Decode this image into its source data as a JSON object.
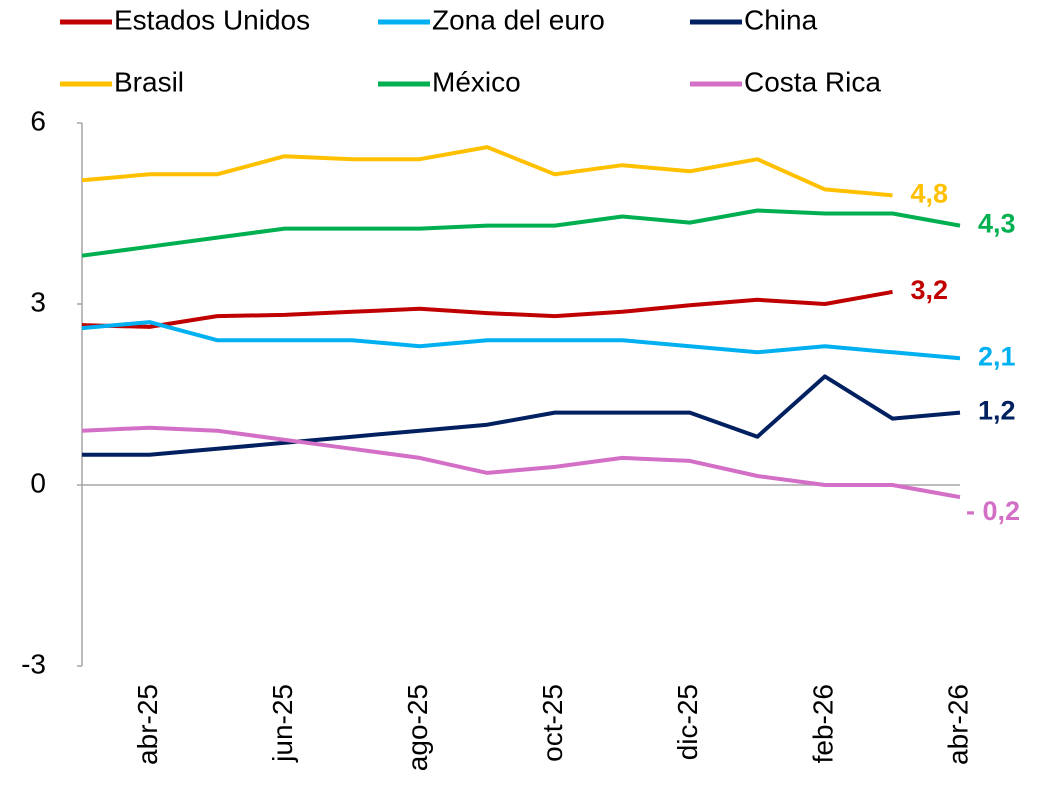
{
  "chart_data": {
    "type": "line",
    "categories": [
      null,
      "abr-25",
      null,
      "jun-25",
      null,
      "ago-25",
      null,
      "oct-25",
      null,
      "dic-25",
      null,
      "feb-26",
      null,
      "abr-26"
    ],
    "series": [
      {
        "name": "Estados Unidos",
        "color": "#c00000",
        "values": [
          2.65,
          2.62,
          2.8,
          2.82,
          2.87,
          2.92,
          2.85,
          2.8,
          2.87,
          2.98,
          3.07,
          3.0,
          3.2,
          null
        ],
        "value_labels": [
          null,
          null,
          null,
          null,
          null,
          null,
          null,
          null,
          null,
          null,
          null,
          null,
          "3,2",
          null
        ]
      },
      {
        "name": "Zona del euro",
        "color": "#00b0f0",
        "values": [
          2.6,
          2.7,
          2.4,
          2.4,
          2.4,
          2.3,
          2.4,
          2.4,
          2.4,
          2.3,
          2.2,
          2.3,
          2.2,
          2.1
        ],
        "value_labels": [
          null,
          null,
          null,
          null,
          null,
          null,
          null,
          null,
          null,
          null,
          null,
          null,
          null,
          "2,1"
        ]
      },
      {
        "name": "China",
        "color": "#002060",
        "values": [
          0.5,
          0.5,
          0.6,
          0.7,
          0.8,
          0.9,
          1.0,
          1.2,
          1.2,
          1.2,
          0.8,
          1.8,
          1.1,
          1.2
        ],
        "value_labels": [
          null,
          null,
          null,
          null,
          null,
          null,
          null,
          null,
          null,
          null,
          null,
          null,
          null,
          "1,2"
        ]
      },
      {
        "name": "Brasil",
        "color": "#ffc000",
        "values": [
          5.05,
          5.15,
          5.15,
          5.45,
          5.4,
          5.4,
          5.6,
          5.15,
          5.3,
          5.2,
          5.4,
          4.9,
          4.8,
          null
        ],
        "value_labels": [
          null,
          null,
          null,
          null,
          null,
          null,
          null,
          null,
          null,
          null,
          null,
          null,
          "4,8",
          null
        ]
      },
      {
        "name": "México",
        "color": "#00b050",
        "values": [
          3.8,
          3.95,
          4.1,
          4.25,
          4.25,
          4.25,
          4.3,
          4.3,
          4.45,
          4.35,
          4.55,
          4.5,
          4.5,
          4.3
        ],
        "value_labels": [
          null,
          null,
          null,
          null,
          null,
          null,
          null,
          null,
          null,
          null,
          null,
          null,
          null,
          "4,3"
        ]
      },
      {
        "name": "Costa Rica",
        "color": "#d36fc6",
        "values": [
          0.9,
          0.95,
          0.9,
          0.75,
          0.6,
          0.45,
          0.2,
          0.3,
          0.45,
          0.4,
          0.15,
          0.0,
          0.0,
          -0.2
        ],
        "value_labels": [
          null,
          null,
          null,
          null,
          null,
          null,
          null,
          null,
          null,
          null,
          null,
          null,
          null,
          "- 0,2"
        ]
      }
    ],
    "ylim": [
      -3,
      6
    ],
    "yticks": [
      -3,
      0,
      3,
      6
    ],
    "grid": false
  }
}
